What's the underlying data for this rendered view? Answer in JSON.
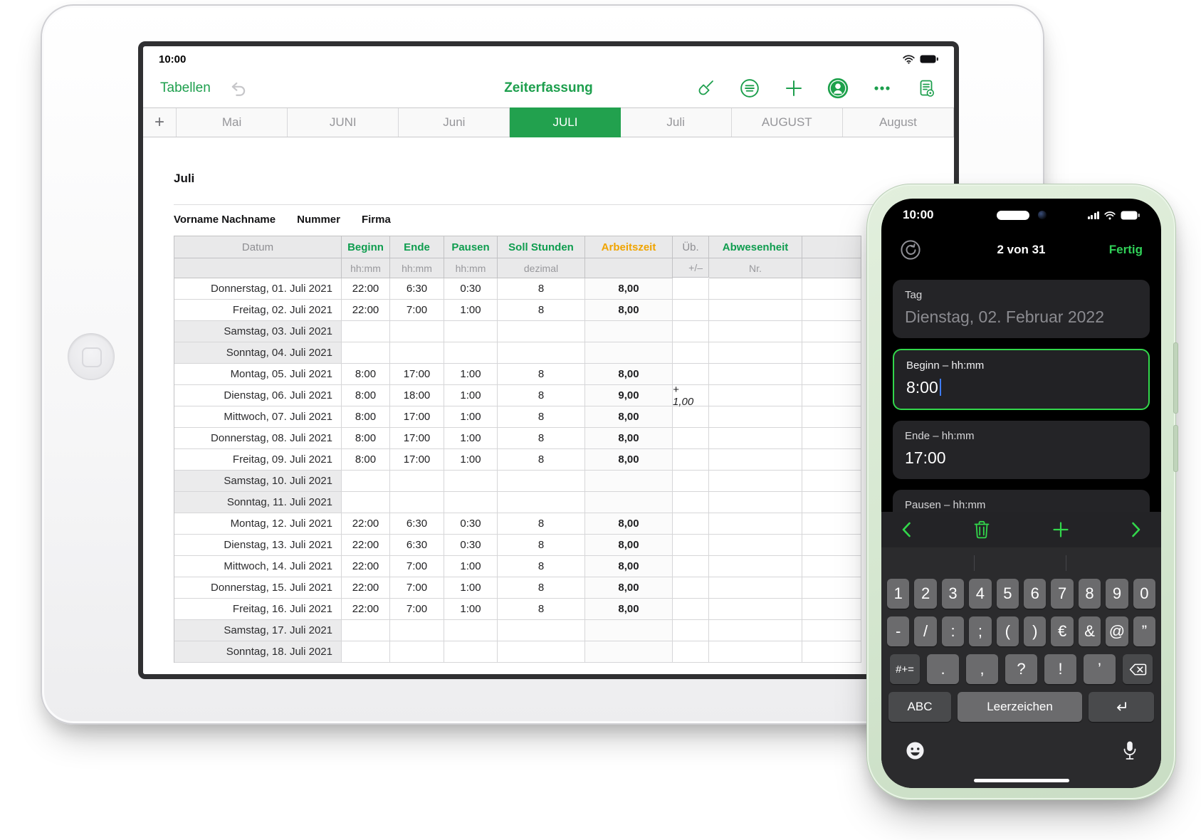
{
  "colors": {
    "app_green": "#1d9f4d",
    "tab_active_green": "#22a14e",
    "header_green": "#0f9d4f",
    "accent_orange": "#f0a400",
    "ios_green": "#32d74b",
    "cursor_blue": "#3e7bfa"
  },
  "ipad": {
    "status_time": "10:00",
    "toolbar": {
      "back_label": "Tabellen",
      "title": "Zeiterfassung",
      "icons": [
        "undo-icon",
        "paintbrush-icon",
        "view-options-icon",
        "add-icon",
        "collaborate-icon",
        "more-icon",
        "document-versions-icon"
      ]
    },
    "tabs": {
      "add_label": "+",
      "items": [
        {
          "label": "Mai",
          "active": false
        },
        {
          "label": "JUNI",
          "active": false
        },
        {
          "label": "Juni",
          "active": false
        },
        {
          "label": "JULI",
          "active": true
        },
        {
          "label": "Juli",
          "active": false
        },
        {
          "label": "AUGUST",
          "active": false
        },
        {
          "label": "August",
          "active": false
        }
      ]
    },
    "sheet": {
      "title": "Juli",
      "info": [
        "Vorname Nachname",
        "Nummer",
        "Firma"
      ],
      "table": {
        "columns": [
          {
            "label": "Datum",
            "sub": "",
            "style": "muted"
          },
          {
            "label": "Beginn",
            "sub": "hh:mm",
            "style": "green"
          },
          {
            "label": "Ende",
            "sub": "hh:mm",
            "style": "green"
          },
          {
            "label": "Pausen",
            "sub": "hh:mm",
            "style": "green"
          },
          {
            "label": "Soll Stunden",
            "sub": "dezimal",
            "style": "green"
          },
          {
            "label": "Arbeitszeit",
            "sub": "",
            "style": "orange"
          },
          {
            "label": "Üb.",
            "sub": "+/–",
            "style": "muted"
          },
          {
            "label": "Abwesenheit",
            "sub": "Nr.",
            "style": "green"
          },
          {
            "label": "",
            "sub": "",
            "style": "muted"
          }
        ],
        "rows": [
          {
            "date": "Donnerstag, 01. Juli 2021",
            "weekend": false,
            "cells": [
              "22:00",
              "6:30",
              "0:30",
              "8",
              "8,00",
              "",
              "",
              ""
            ]
          },
          {
            "date": "Freitag, 02. Juli 2021",
            "weekend": false,
            "cells": [
              "22:00",
              "7:00",
              "1:00",
              "8",
              "8,00",
              "",
              "",
              ""
            ]
          },
          {
            "date": "Samstag, 03. Juli 2021",
            "weekend": true,
            "cells": [
              "",
              "",
              "",
              "",
              "",
              "",
              "",
              ""
            ]
          },
          {
            "date": "Sonntag, 04. Juli 2021",
            "weekend": true,
            "cells": [
              "",
              "",
              "",
              "",
              "",
              "",
              "",
              ""
            ]
          },
          {
            "date": "Montag, 05. Juli 2021",
            "weekend": false,
            "cells": [
              "8:00",
              "17:00",
              "1:00",
              "8",
              "8,00",
              "",
              "",
              ""
            ]
          },
          {
            "date": "Dienstag, 06. Juli 2021",
            "weekend": false,
            "cells": [
              "8:00",
              "18:00",
              "1:00",
              "8",
              "9,00",
              "+ 1,00",
              "",
              ""
            ]
          },
          {
            "date": "Mittwoch, 07. Juli 2021",
            "weekend": false,
            "cells": [
              "8:00",
              "17:00",
              "1:00",
              "8",
              "8,00",
              "",
              "",
              ""
            ]
          },
          {
            "date": "Donnerstag, 08. Juli 2021",
            "weekend": false,
            "cells": [
              "8:00",
              "17:00",
              "1:00",
              "8",
              "8,00",
              "",
              "",
              ""
            ]
          },
          {
            "date": "Freitag, 09. Juli 2021",
            "weekend": false,
            "cells": [
              "8:00",
              "17:00",
              "1:00",
              "8",
              "8,00",
              "",
              "",
              ""
            ]
          },
          {
            "date": "Samstag, 10. Juli 2021",
            "weekend": true,
            "cells": [
              "",
              "",
              "",
              "",
              "",
              "",
              "",
              ""
            ]
          },
          {
            "date": "Sonntag, 11. Juli 2021",
            "weekend": true,
            "cells": [
              "",
              "",
              "",
              "",
              "",
              "",
              "",
              ""
            ]
          },
          {
            "date": "Montag, 12. Juli 2021",
            "weekend": false,
            "cells": [
              "22:00",
              "6:30",
              "0:30",
              "8",
              "8,00",
              "",
              "",
              ""
            ]
          },
          {
            "date": "Dienstag, 13. Juli 2021",
            "weekend": false,
            "cells": [
              "22:00",
              "6:30",
              "0:30",
              "8",
              "8,00",
              "",
              "",
              ""
            ]
          },
          {
            "date": "Mittwoch, 14. Juli 2021",
            "weekend": false,
            "cells": [
              "22:00",
              "7:00",
              "1:00",
              "8",
              "8,00",
              "",
              "",
              ""
            ]
          },
          {
            "date": "Donnerstag, 15. Juli 2021",
            "weekend": false,
            "cells": [
              "22:00",
              "7:00",
              "1:00",
              "8",
              "8,00",
              "",
              "",
              ""
            ]
          },
          {
            "date": "Freitag, 16. Juli 2021",
            "weekend": false,
            "cells": [
              "22:00",
              "7:00",
              "1:00",
              "8",
              "8,00",
              "",
              "",
              ""
            ]
          },
          {
            "date": "Samstag, 17. Juli 2021",
            "weekend": true,
            "cells": [
              "",
              "",
              "",
              "",
              "",
              "",
              "",
              ""
            ]
          },
          {
            "date": "Sonntag, 18. Juli 2021",
            "weekend": true,
            "cells": [
              "",
              "",
              "",
              "",
              "",
              "",
              "",
              ""
            ]
          }
        ]
      }
    }
  },
  "phone": {
    "status_time": "10:00",
    "nav": {
      "counter": "2 von 31",
      "done_label": "Fertig"
    },
    "fields": [
      {
        "id": "tag",
        "label": "Tag",
        "value": "Dienstag, 02. Februar 2022",
        "muted": true,
        "active": false,
        "cursor": false
      },
      {
        "id": "beginn",
        "label": "Beginn – hh:mm",
        "value": "8:00",
        "muted": false,
        "active": true,
        "cursor": true
      },
      {
        "id": "ende",
        "label": "Ende – hh:mm",
        "value": "17:00",
        "muted": false,
        "active": false,
        "cursor": false
      },
      {
        "id": "pausen",
        "label": "Pausen – hh:mm",
        "value": "",
        "muted": false,
        "active": false,
        "cursor": false
      }
    ],
    "keyboard": {
      "row1": [
        "1",
        "2",
        "3",
        "4",
        "5",
        "6",
        "7",
        "8",
        "9",
        "0"
      ],
      "row2": [
        "-",
        "/",
        ":",
        ";",
        "(",
        ")",
        "€",
        "&",
        "@",
        "”"
      ],
      "row3": [
        ".",
        ",",
        "?",
        "!",
        "’"
      ],
      "symbols_label": "#+=",
      "abc_label": "ABC",
      "space_label": "Leerzeichen",
      "accessory_icons": [
        "chevron-left-icon",
        "trash-icon",
        "add-icon",
        "chevron-right-icon"
      ]
    }
  }
}
